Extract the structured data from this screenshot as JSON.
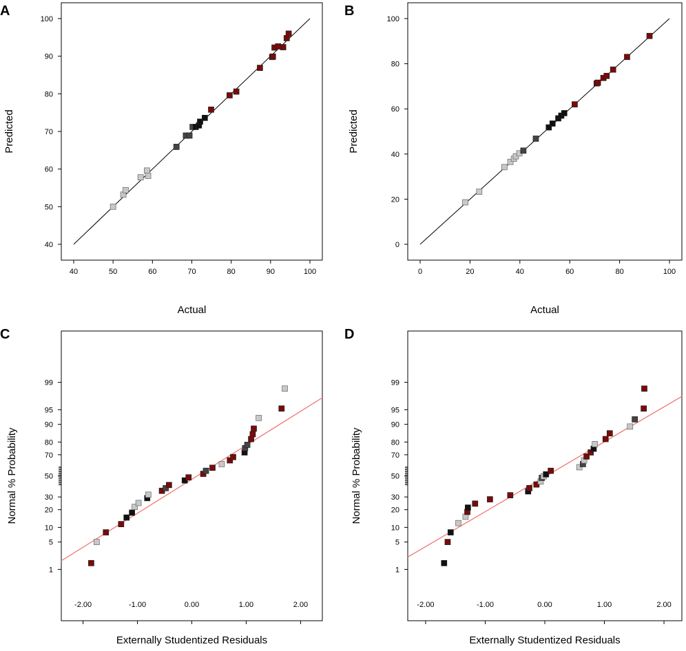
{
  "colors": {
    "dark_red": "#7a0a0a",
    "black": "#111111",
    "dark_gray": "#444444",
    "light_gray": "#c8c8c8",
    "fit_line": "#f08080",
    "diag_line": "#000000"
  },
  "chart_data": [
    {
      "panel": "A",
      "type": "scatter",
      "title": "",
      "xlabel": "Actual",
      "ylabel": "Predicted",
      "xlim": [
        40,
        100
      ],
      "ylim": [
        40,
        100
      ],
      "xticks": [
        40,
        50,
        60,
        70,
        80,
        90,
        100
      ],
      "yticks": [
        40,
        50,
        60,
        70,
        80,
        90,
        100
      ],
      "xtick_labels": [
        "40",
        "50",
        "60",
        "70",
        "80",
        "90",
        "100"
      ],
      "ytick_labels": [
        "40",
        "50",
        "60",
        "70",
        "80",
        "90",
        "100"
      ],
      "reference_line": [
        [
          40,
          40
        ],
        [
          100,
          100
        ]
      ],
      "points": [
        {
          "x": 50.0,
          "y": 50.0,
          "c": "light_gray"
        },
        {
          "x": 52.6,
          "y": 53.2,
          "c": "light_gray"
        },
        {
          "x": 53.2,
          "y": 54.4,
          "c": "light_gray"
        },
        {
          "x": 57.0,
          "y": 57.8,
          "c": "light_gray"
        },
        {
          "x": 58.6,
          "y": 59.6,
          "c": "light_gray"
        },
        {
          "x": 58.9,
          "y": 58.2,
          "c": "light_gray"
        },
        {
          "x": 66.1,
          "y": 65.9,
          "c": "dark_gray"
        },
        {
          "x": 68.5,
          "y": 68.9,
          "c": "dark_gray"
        },
        {
          "x": 69.4,
          "y": 68.9,
          "c": "dark_gray"
        },
        {
          "x": 70.2,
          "y": 71.2,
          "c": "dark_gray"
        },
        {
          "x": 71.0,
          "y": 71.2,
          "c": "black"
        },
        {
          "x": 71.8,
          "y": 71.6,
          "c": "black"
        },
        {
          "x": 72.1,
          "y": 72.6,
          "c": "black"
        },
        {
          "x": 73.3,
          "y": 73.6,
          "c": "black"
        },
        {
          "x": 74.9,
          "y": 75.8,
          "c": "dark_red"
        },
        {
          "x": 79.6,
          "y": 79.6,
          "c": "dark_red"
        },
        {
          "x": 81.3,
          "y": 80.6,
          "c": "dark_red"
        },
        {
          "x": 87.3,
          "y": 86.9,
          "c": "dark_red"
        },
        {
          "x": 90.4,
          "y": 89.8,
          "c": "dark_red"
        },
        {
          "x": 90.6,
          "y": 89.9,
          "c": "dark_red"
        },
        {
          "x": 91.0,
          "y": 92.3,
          "c": "dark_red"
        },
        {
          "x": 91.9,
          "y": 92.6,
          "c": "dark_red"
        },
        {
          "x": 93.2,
          "y": 92.4,
          "c": "dark_red"
        },
        {
          "x": 94.1,
          "y": 94.8,
          "c": "dark_red"
        },
        {
          "x": 94.6,
          "y": 96.0,
          "c": "dark_red"
        }
      ]
    },
    {
      "panel": "B",
      "type": "scatter",
      "title": "",
      "xlabel": "Actual",
      "ylabel": "Predicted",
      "xlim": [
        0,
        100
      ],
      "ylim": [
        0,
        100
      ],
      "xticks": [
        0,
        20,
        40,
        60,
        80,
        100
      ],
      "yticks": [
        0,
        20,
        40,
        60,
        80,
        100
      ],
      "xtick_labels": [
        "0",
        "20",
        "40",
        "60",
        "80",
        "100"
      ],
      "ytick_labels": [
        "0",
        "20",
        "40",
        "60",
        "80",
        "100"
      ],
      "reference_line": [
        [
          0,
          0
        ],
        [
          100,
          100
        ]
      ],
      "points": [
        {
          "x": 18.1,
          "y": 18.6,
          "c": "light_gray"
        },
        {
          "x": 23.7,
          "y": 23.3,
          "c": "light_gray"
        },
        {
          "x": 33.8,
          "y": 34.2,
          "c": "light_gray"
        },
        {
          "x": 36.2,
          "y": 36.5,
          "c": "light_gray"
        },
        {
          "x": 37.6,
          "y": 37.9,
          "c": "light_gray"
        },
        {
          "x": 38.4,
          "y": 39.0,
          "c": "light_gray"
        },
        {
          "x": 39.8,
          "y": 40.3,
          "c": "light_gray"
        },
        {
          "x": 41.4,
          "y": 41.5,
          "c": "dark_gray"
        },
        {
          "x": 46.4,
          "y": 46.8,
          "c": "dark_gray"
        },
        {
          "x": 51.6,
          "y": 51.8,
          "c": "black"
        },
        {
          "x": 53.1,
          "y": 53.5,
          "c": "black"
        },
        {
          "x": 55.4,
          "y": 55.8,
          "c": "black"
        },
        {
          "x": 56.6,
          "y": 57.0,
          "c": "black"
        },
        {
          "x": 57.8,
          "y": 58.1,
          "c": "black"
        },
        {
          "x": 62.0,
          "y": 62.0,
          "c": "dark_red"
        },
        {
          "x": 70.8,
          "y": 71.3,
          "c": "dark_red"
        },
        {
          "x": 71.3,
          "y": 71.6,
          "c": "dark_red"
        },
        {
          "x": 73.5,
          "y": 73.7,
          "c": "dark_red"
        },
        {
          "x": 74.8,
          "y": 74.6,
          "c": "dark_red"
        },
        {
          "x": 77.4,
          "y": 77.4,
          "c": "dark_red"
        },
        {
          "x": 83.0,
          "y": 83.0,
          "c": "dark_red"
        },
        {
          "x": 92.0,
          "y": 92.3,
          "c": "dark_red"
        }
      ]
    },
    {
      "panel": "C",
      "type": "scatter",
      "title": "",
      "xlabel": "Externally Studentized Residuals",
      "ylabel": "Normal % Probability",
      "xlim": [
        -2.4,
        2.4
      ],
      "y_scale": "normal probability",
      "xticks": [
        -2.0,
        -1.0,
        0.0,
        1.0,
        2.0
      ],
      "xtick_labels": [
        "-2.00",
        "-1.00",
        "0.00",
        "1.00",
        "2.00"
      ],
      "yticks": [
        1,
        5,
        10,
        20,
        30,
        50,
        70,
        80,
        90,
        95,
        99
      ],
      "ytick_labels": [
        "1",
        "5",
        "10",
        "20",
        "30",
        "50",
        "70",
        "80",
        "90",
        "95",
        "99"
      ],
      "fit_line": [
        [
          -2.4,
          1.73
        ],
        [
          2.4,
          97.4
        ]
      ],
      "points": [
        {
          "x": -1.85,
          "y": 1.5,
          "c": "dark_red"
        },
        {
          "x": -1.75,
          "y": 5.0,
          "c": "light_gray"
        },
        {
          "x": -1.58,
          "y": 8.0,
          "c": "dark_red"
        },
        {
          "x": -1.3,
          "y": 11.5,
          "c": "dark_red"
        },
        {
          "x": -1.2,
          "y": 15.0,
          "c": "black"
        },
        {
          "x": -1.1,
          "y": 18.0,
          "c": "black"
        },
        {
          "x": -1.05,
          "y": 22.0,
          "c": "light_gray"
        },
        {
          "x": -0.98,
          "y": 25.0,
          "c": "light_gray"
        },
        {
          "x": -0.82,
          "y": 29.0,
          "c": "black"
        },
        {
          "x": -0.8,
          "y": 32.0,
          "c": "light_gray"
        },
        {
          "x": -0.55,
          "y": 35.5,
          "c": "dark_red"
        },
        {
          "x": -0.48,
          "y": 38.0,
          "c": "dark_gray"
        },
        {
          "x": -0.42,
          "y": 41.0,
          "c": "dark_red"
        },
        {
          "x": -0.13,
          "y": 45.5,
          "c": "black"
        },
        {
          "x": -0.06,
          "y": 48.5,
          "c": "dark_red"
        },
        {
          "x": 0.21,
          "y": 52.0,
          "c": "dark_red"
        },
        {
          "x": 0.26,
          "y": 55.0,
          "c": "dark_gray"
        },
        {
          "x": 0.38,
          "y": 58.0,
          "c": "dark_red"
        },
        {
          "x": 0.55,
          "y": 61.5,
          "c": "light_gray"
        },
        {
          "x": 0.7,
          "y": 65.0,
          "c": "dark_red"
        },
        {
          "x": 0.76,
          "y": 68.0,
          "c": "dark_red"
        },
        {
          "x": 0.97,
          "y": 72.0,
          "c": "black"
        },
        {
          "x": 0.98,
          "y": 75.5,
          "c": "dark_gray"
        },
        {
          "x": 1.02,
          "y": 78.0,
          "c": "dark_gray"
        },
        {
          "x": 1.09,
          "y": 82.0,
          "c": "dark_red"
        },
        {
          "x": 1.12,
          "y": 85.0,
          "c": "dark_red"
        },
        {
          "x": 1.14,
          "y": 88.0,
          "c": "dark_red"
        },
        {
          "x": 1.23,
          "y": 92.5,
          "c": "light_gray"
        },
        {
          "x": 1.65,
          "y": 95.3,
          "c": "dark_red"
        },
        {
          "x": 1.71,
          "y": 98.5,
          "c": "light_gray"
        }
      ]
    },
    {
      "panel": "D",
      "type": "scatter",
      "title": "",
      "xlabel": "Externally Studentized Residuals",
      "ylabel": "Normal % Probability",
      "xlim": [
        -2.3,
        2.3
      ],
      "y_scale": "normal probability",
      "xticks": [
        -2.0,
        -1.0,
        0.0,
        1.0,
        2.0
      ],
      "xtick_labels": [
        "-2.00",
        "-1.00",
        "0.00",
        "1.00",
        "2.00"
      ],
      "yticks": [
        1,
        5,
        10,
        20,
        30,
        50,
        70,
        80,
        90,
        95,
        99
      ],
      "ytick_labels": [
        "1",
        "5",
        "10",
        "20",
        "30",
        "50",
        "70",
        "80",
        "90",
        "95",
        "99"
      ],
      "fit_line": [
        [
          -2.3,
          2.17
        ],
        [
          2.3,
          97.6
        ]
      ],
      "points": [
        {
          "x": -1.69,
          "y": 1.5,
          "c": "black"
        },
        {
          "x": -1.63,
          "y": 5.0,
          "c": "dark_red"
        },
        {
          "x": -1.58,
          "y": 8.0,
          "c": "black"
        },
        {
          "x": -1.45,
          "y": 12.0,
          "c": "light_gray"
        },
        {
          "x": -1.33,
          "y": 15.5,
          "c": "light_gray"
        },
        {
          "x": -1.3,
          "y": 18.5,
          "c": "dark_red"
        },
        {
          "x": -1.29,
          "y": 21.5,
          "c": "black"
        },
        {
          "x": -1.17,
          "y": 24.5,
          "c": "dark_red"
        },
        {
          "x": -0.92,
          "y": 28.0,
          "c": "dark_red"
        },
        {
          "x": -0.58,
          "y": 31.5,
          "c": "dark_red"
        },
        {
          "x": -0.28,
          "y": 35.0,
          "c": "black"
        },
        {
          "x": -0.26,
          "y": 38.0,
          "c": "dark_red"
        },
        {
          "x": -0.14,
          "y": 41.5,
          "c": "dark_red"
        },
        {
          "x": -0.07,
          "y": 44.5,
          "c": "light_gray"
        },
        {
          "x": -0.05,
          "y": 48.0,
          "c": "dark_gray"
        },
        {
          "x": -0.02,
          "y": 49.5,
          "c": "light_gray"
        },
        {
          "x": 0.02,
          "y": 51.5,
          "c": "black"
        },
        {
          "x": 0.1,
          "y": 55.0,
          "c": "dark_red"
        },
        {
          "x": 0.58,
          "y": 58.5,
          "c": "light_gray"
        },
        {
          "x": 0.64,
          "y": 61.5,
          "c": "dark_gray"
        },
        {
          "x": 0.66,
          "y": 65.0,
          "c": "light_gray"
        },
        {
          "x": 0.7,
          "y": 68.5,
          "c": "dark_red"
        },
        {
          "x": 0.77,
          "y": 72.0,
          "c": "dark_red"
        },
        {
          "x": 0.82,
          "y": 75.0,
          "c": "black"
        },
        {
          "x": 0.84,
          "y": 78.5,
          "c": "light_gray"
        },
        {
          "x": 1.02,
          "y": 82.0,
          "c": "dark_red"
        },
        {
          "x": 1.09,
          "y": 85.5,
          "c": "dark_red"
        },
        {
          "x": 1.43,
          "y": 89.0,
          "c": "light_gray"
        },
        {
          "x": 1.51,
          "y": 92.0,
          "c": "dark_gray"
        },
        {
          "x": 1.66,
          "y": 95.3,
          "c": "dark_red"
        },
        {
          "x": 1.67,
          "y": 98.5,
          "c": "dark_red"
        }
      ]
    }
  ]
}
